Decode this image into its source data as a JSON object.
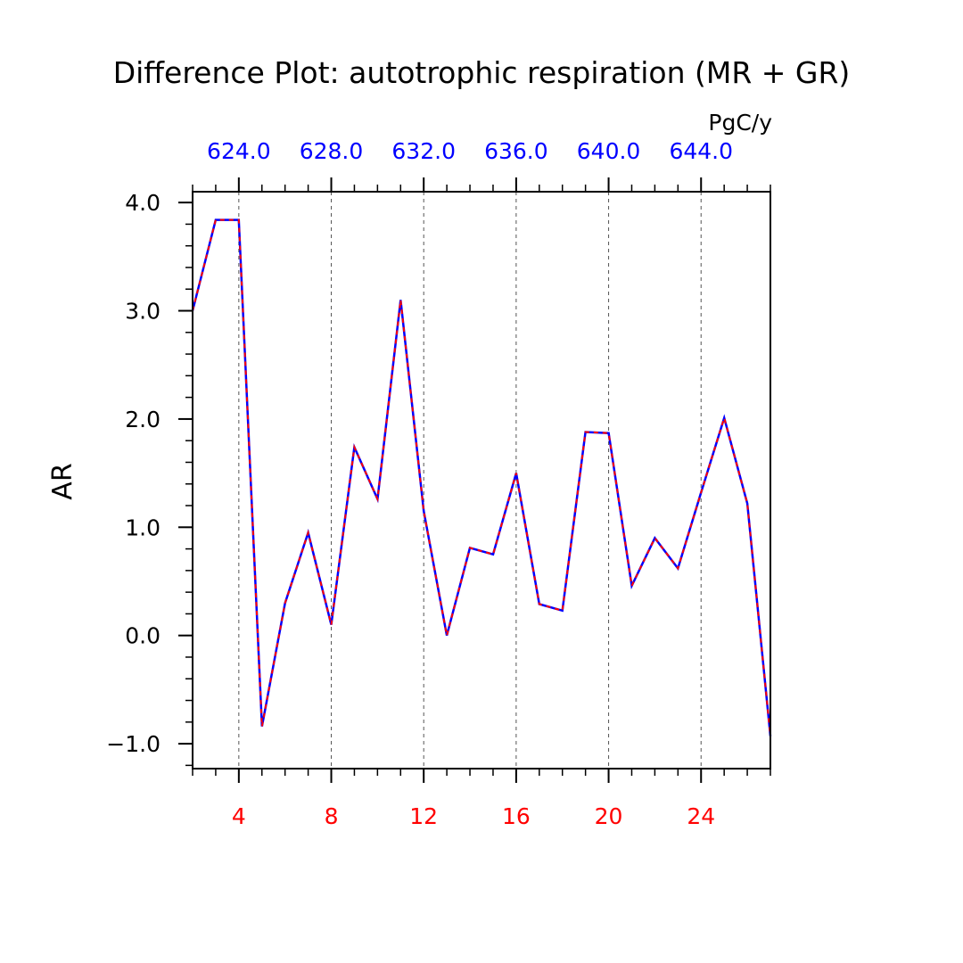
{
  "chart_data": {
    "type": "line",
    "title": "Difference Plot: autotrophic respiration (MR + GR)",
    "ylabel": "AR",
    "units": "PgC/y",
    "xlim": [
      2,
      27
    ],
    "ylim": [
      -1.23,
      4.1
    ],
    "x_ticks": [
      4,
      8,
      12,
      16,
      20,
      24
    ],
    "x_tick_labels": [
      "4",
      "8",
      "12",
      "16",
      "20",
      "24"
    ],
    "x_minor_step": 1,
    "y_ticks": [
      -1.0,
      0.0,
      1.0,
      2.0,
      3.0,
      4.0
    ],
    "y_tick_labels": [
      "−1.0",
      "0.0",
      "1.0",
      "2.0",
      "3.0",
      "4.0"
    ],
    "y_minor_step": 0.2,
    "top_ticks": [
      4,
      8,
      12,
      16,
      20,
      24
    ],
    "top_tick_labels": [
      "624.0",
      "628.0",
      "632.0",
      "636.0",
      "640.0",
      "644.0"
    ],
    "grid": "vertical dashed at major x ticks",
    "colors": {
      "x_labels": "#ff0000",
      "top_labels": "#0000ff",
      "solid_line": "#0000ff",
      "dashed_line": "#ff0000"
    },
    "series": [
      {
        "style": "solid",
        "color": "#0000ff",
        "x": [
          2,
          3,
          4,
          5,
          6,
          7,
          8,
          9,
          10,
          11,
          12,
          13,
          14,
          15,
          16,
          17,
          18,
          19,
          20,
          21,
          22,
          23,
          24,
          25,
          26,
          27
        ],
        "values": [
          3.0,
          3.84,
          3.84,
          -0.84,
          0.3,
          0.95,
          0.1,
          1.74,
          1.26,
          3.1,
          1.15,
          0.0,
          0.81,
          0.75,
          1.5,
          0.29,
          0.23,
          1.88,
          1.87,
          0.46,
          0.9,
          0.62,
          1.32,
          2.01,
          1.22,
          -0.93
        ]
      },
      {
        "style": "dashed",
        "color": "#ff0000",
        "x": [
          2,
          3,
          4,
          5,
          6,
          7,
          8,
          9,
          10,
          11,
          12,
          13,
          14,
          15,
          16,
          17,
          18,
          19,
          20,
          21,
          22,
          23,
          24,
          25,
          26,
          27
        ],
        "values": [
          3.0,
          3.84,
          3.84,
          -0.84,
          0.3,
          0.95,
          0.1,
          1.74,
          1.26,
          3.1,
          1.15,
          0.0,
          0.81,
          0.75,
          1.5,
          0.29,
          0.23,
          1.88,
          1.87,
          0.46,
          0.9,
          0.62,
          1.32,
          2.01,
          1.22,
          -0.93
        ]
      }
    ]
  }
}
